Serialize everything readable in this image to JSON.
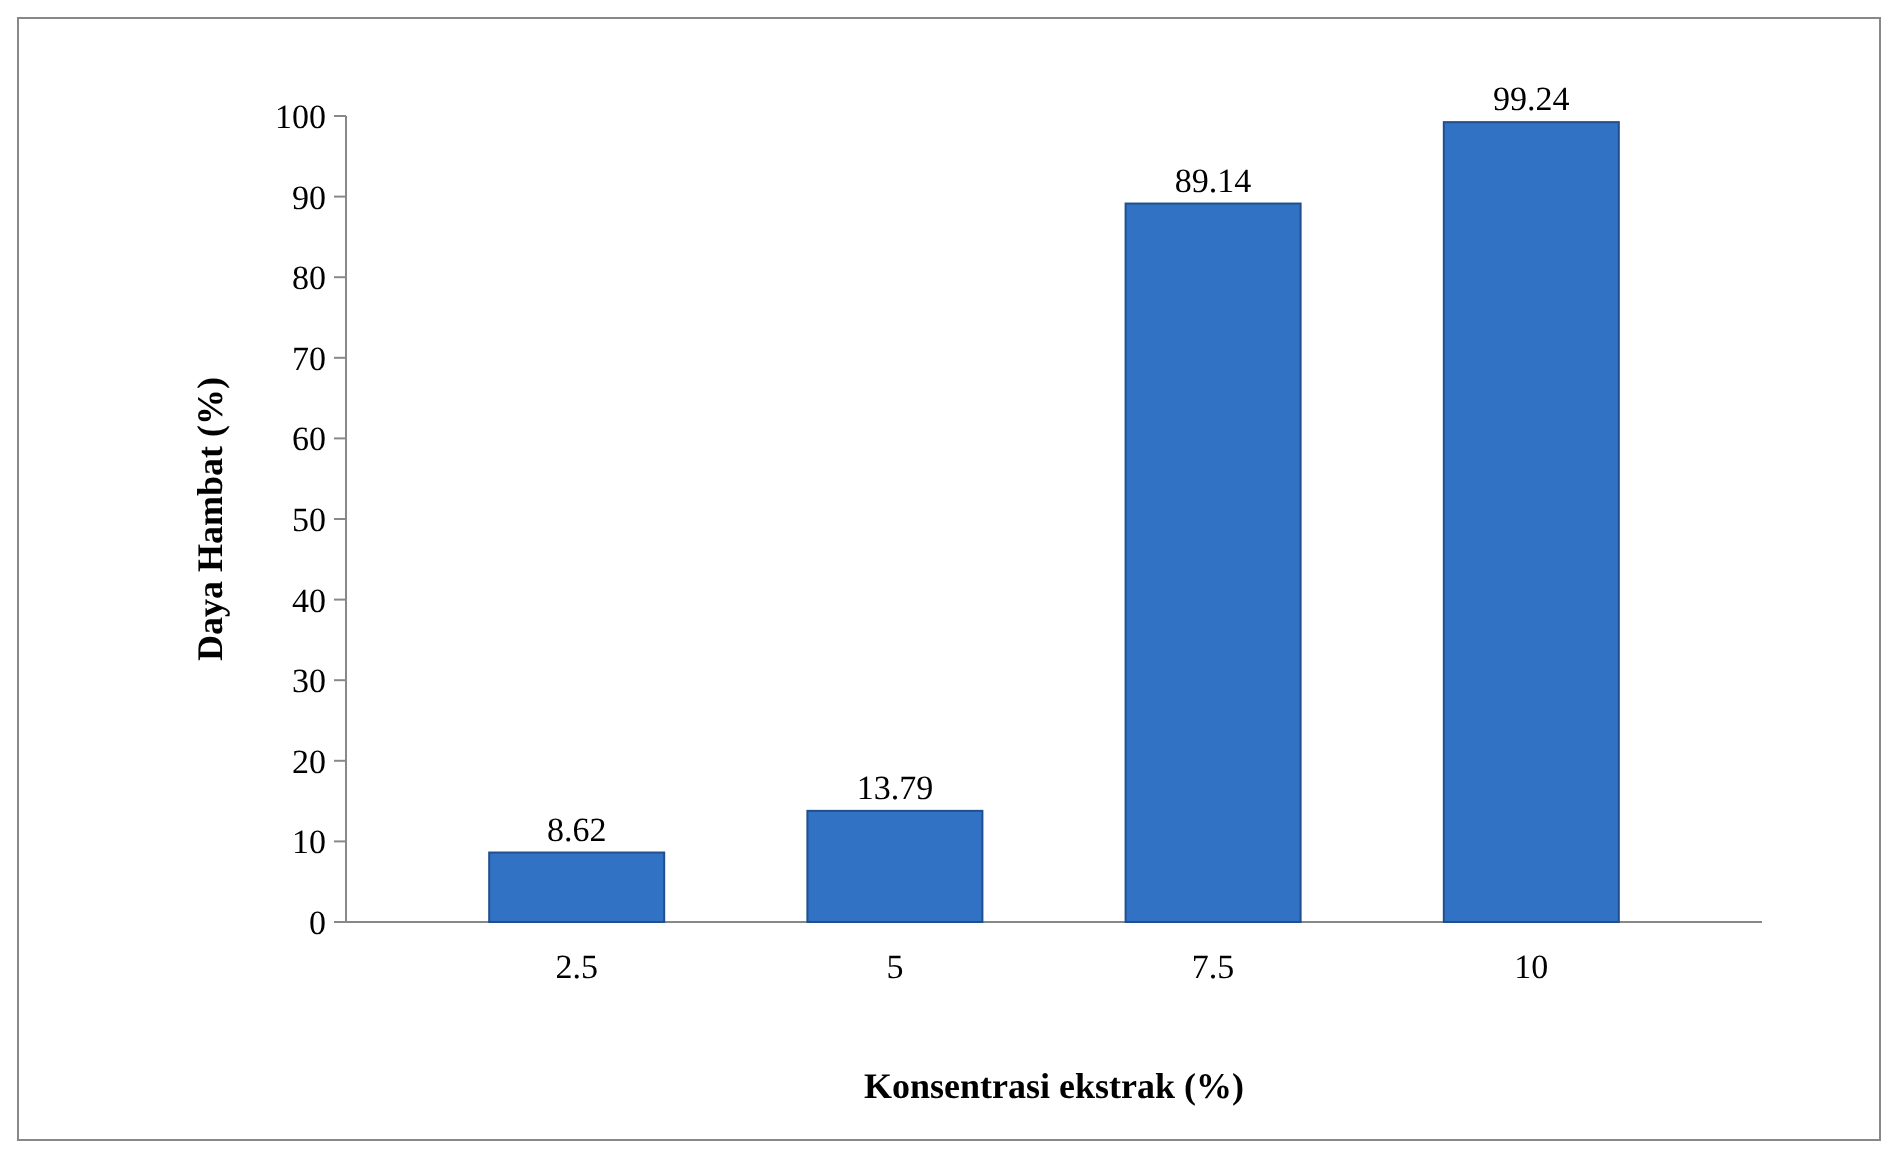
{
  "chart_data": {
    "type": "bar",
    "xlabel": "Konsentrasi ekstrak (%)",
    "ylabel": "Daya Hambat (%)",
    "categories": [
      "2.5",
      "5",
      "7.5",
      "10"
    ],
    "values": [
      8.62,
      13.79,
      89.14,
      99.24
    ],
    "color": "#3272c4",
    "ylim": [
      0,
      100
    ],
    "yticks": [
      0,
      10,
      20,
      30,
      40,
      50,
      60,
      70,
      80,
      90,
      100
    ],
    "data_labels": true
  }
}
